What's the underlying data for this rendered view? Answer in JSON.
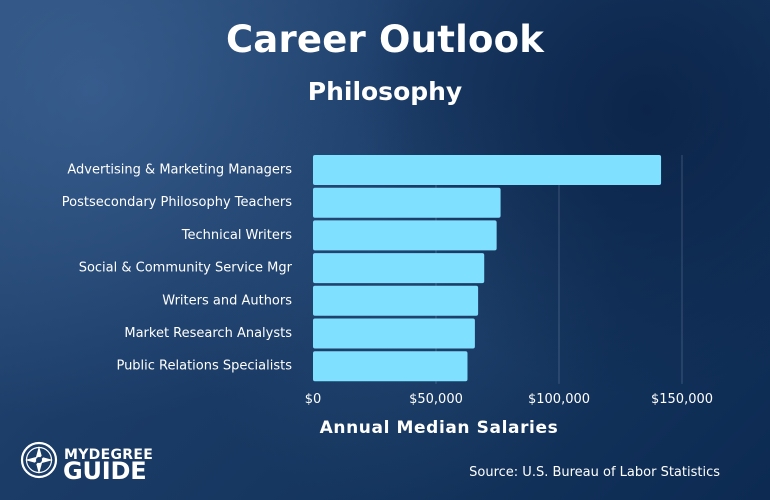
{
  "header": {
    "title": "Career Outlook",
    "subtitle": "Philosophy"
  },
  "footer": {
    "source": "Source: U.S. Bureau of Labor Statistics",
    "logo_line1": "MYDEGREE",
    "logo_line2": "GUIDE"
  },
  "colors": {
    "bar": "#7fe0ff",
    "background_dark": "#163760",
    "background_light": "#2c4f7b",
    "text": "#ffffff"
  },
  "chart_data": {
    "type": "bar",
    "orientation": "horizontal",
    "title": "Career Outlook",
    "subtitle": "Philosophy",
    "xlabel": "Annual Median Salaries",
    "ylabel": "",
    "categories": [
      "Advertising & Marketing Managers",
      "Postsecondary Philosophy Teachers",
      "Technical Writers",
      "Social & Community Service Mgr",
      "Writers and Authors",
      "Market Research Analysts",
      "Public Relations Specialists"
    ],
    "values": [
      141490,
      76250,
      74650,
      69600,
      67120,
      65810,
      62800
    ],
    "xlim": [
      0,
      150000
    ],
    "xticks": [
      0,
      50000,
      100000,
      150000
    ],
    "xtick_labels": [
      "$0",
      "$50,000",
      "$100,000",
      "$150,000"
    ],
    "grid": "vertical",
    "legend": "none"
  }
}
